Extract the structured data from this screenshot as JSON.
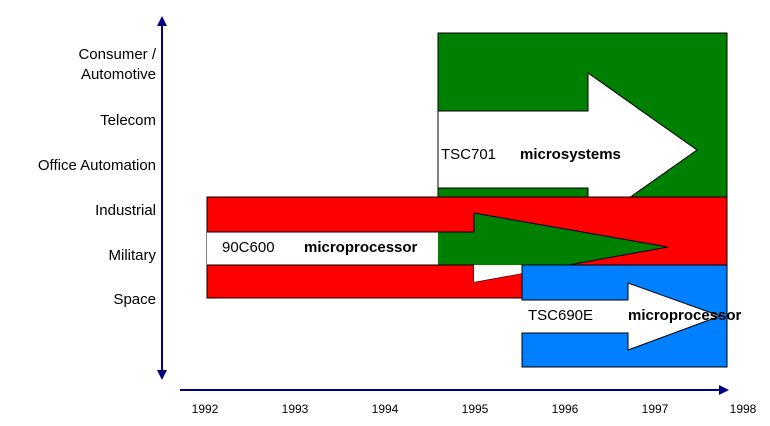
{
  "y_labels": [
    "Consumer /",
    "Automotive",
    "Telecom",
    "Office Automation",
    "Industrial",
    "Military",
    "Space"
  ],
  "years": [
    "1992",
    "1993",
    "1994",
    "1995",
    "1996",
    "1997",
    "1998"
  ],
  "products": [
    {
      "code": "TSC701",
      "kind": "microsystems"
    },
    {
      "code": "90C600",
      "kind": "microprocessor"
    },
    {
      "code": "TSC690E",
      "kind": "microprocessor"
    }
  ]
}
